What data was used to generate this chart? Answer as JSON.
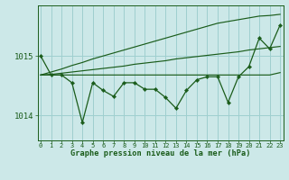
{
  "title": "Graphe pression niveau de la mer (hPa)",
  "bg_color": "#cce8e8",
  "grid_color": "#9fcfcf",
  "line_color": "#1a5c1a",
  "x_labels": [
    "0",
    "1",
    "2",
    "3",
    "4",
    "5",
    "6",
    "7",
    "8",
    "9",
    "10",
    "11",
    "12",
    "13",
    "14",
    "15",
    "16",
    "17",
    "18",
    "19",
    "20",
    "21",
    "22",
    "23"
  ],
  "yticks": [
    1014,
    1015
  ],
  "ylim": [
    1013.58,
    1015.85
  ],
  "xlim": [
    -0.3,
    23.3
  ],
  "series": {
    "main": [
      1015.0,
      1014.68,
      1014.68,
      1014.55,
      1013.88,
      1014.55,
      1014.42,
      1014.32,
      1014.55,
      1014.55,
      1014.44,
      1014.44,
      1014.3,
      1014.12,
      1014.42,
      1014.6,
      1014.65,
      1014.65,
      1014.22,
      1014.65,
      1014.82,
      1015.3,
      1015.12,
      1015.52
    ],
    "trend_flat": [
      1014.68,
      1014.68,
      1014.68,
      1014.68,
      1014.68,
      1014.68,
      1014.68,
      1014.68,
      1014.68,
      1014.68,
      1014.68,
      1014.68,
      1014.68,
      1014.68,
      1014.68,
      1014.68,
      1014.68,
      1014.68,
      1014.68,
      1014.68,
      1014.68,
      1014.68,
      1014.68,
      1014.72
    ],
    "trend_med": [
      1014.68,
      1014.69,
      1014.71,
      1014.73,
      1014.75,
      1014.77,
      1014.79,
      1014.81,
      1014.83,
      1014.86,
      1014.88,
      1014.9,
      1014.92,
      1014.95,
      1014.97,
      1014.99,
      1015.01,
      1015.03,
      1015.05,
      1015.07,
      1015.1,
      1015.12,
      1015.14,
      1015.16
    ],
    "trend_high": [
      1014.68,
      1014.73,
      1014.78,
      1014.84,
      1014.89,
      1014.95,
      1015.0,
      1015.05,
      1015.1,
      1015.15,
      1015.2,
      1015.25,
      1015.3,
      1015.35,
      1015.4,
      1015.45,
      1015.5,
      1015.55,
      1015.58,
      1015.61,
      1015.64,
      1015.67,
      1015.68,
      1015.7
    ]
  }
}
